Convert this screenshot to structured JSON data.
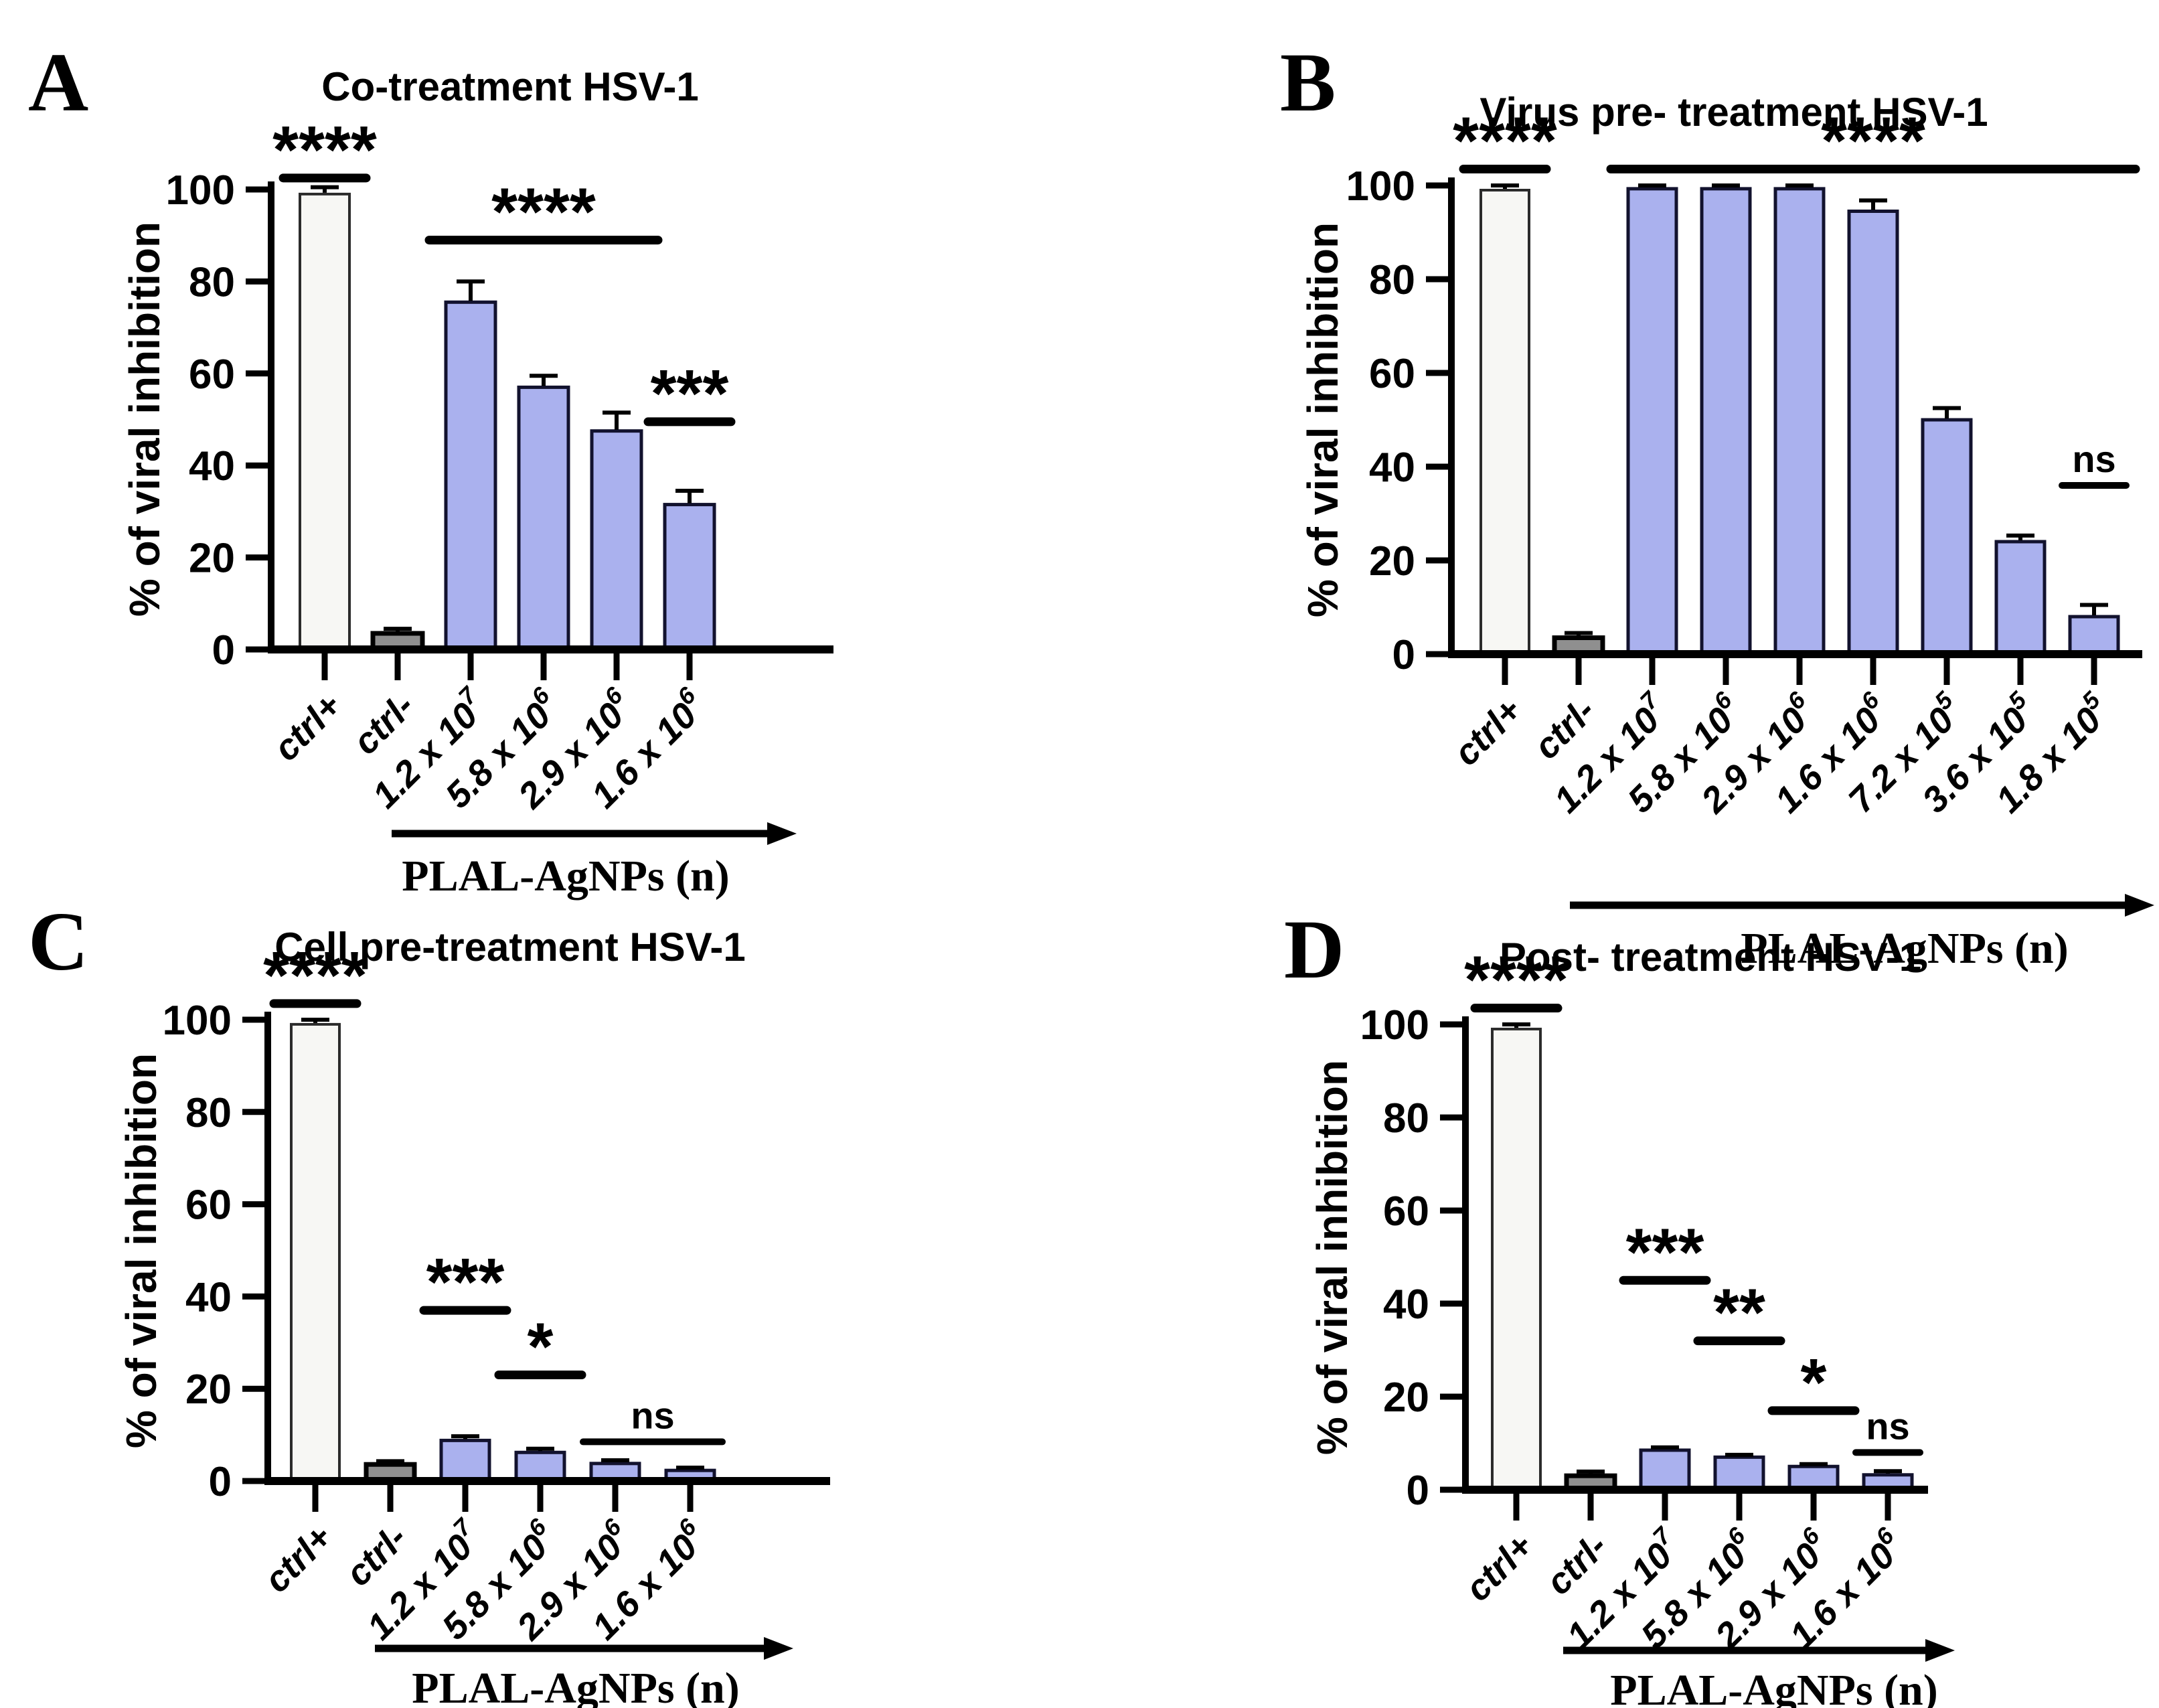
{
  "page": {
    "background": "#ffffff"
  },
  "colors": {
    "treatment_fill": "#aab1ee",
    "treatment_border": "#12122e",
    "control_positive_fill": "#f7f7f4",
    "control_positive_border": "#2b2b2b",
    "control_negative_fill": "#8f8f8f",
    "control_negative_border": "#000000",
    "axis": "#000000",
    "text": "#000000",
    "error_bar": "#000000",
    "significance": "#000000"
  },
  "chart_data": [
    {
      "type": "bar",
      "panel_letter": "A",
      "title": "Co-treatment HSV-1",
      "ylabel": "% of viral inhibition",
      "xlabel": "PLAL-AgNPs (n)",
      "ylim": [
        0,
        100
      ],
      "yticks": [
        0,
        20,
        40,
        60,
        80,
        100
      ],
      "grid": false,
      "legend": "none",
      "categories": [
        "ctrl+",
        "ctrl-",
        "1.2 x 10^7",
        "5.8 x 10^6",
        "2.9 x 10^6",
        "1.6 x 10^6"
      ],
      "values": [
        99,
        3.5,
        75.5,
        57,
        47.5,
        31.5
      ],
      "errors": [
        1.5,
        1,
        4.5,
        2.5,
        4,
        3
      ],
      "bar_roles": [
        "control_positive",
        "control_negative",
        "treatment",
        "treatment",
        "treatment",
        "treatment"
      ],
      "significance": [
        {
          "label": "****",
          "from": 0,
          "to": 0,
          "y": 102.5
        },
        {
          "label": "****",
          "from": 2,
          "to": 4,
          "y": 89
        },
        {
          "label": "***",
          "from": 5,
          "to": 5,
          "y": 49.5
        }
      ],
      "x_arrow": true
    },
    {
      "type": "bar",
      "panel_letter": "B",
      "title": "Virus pre- treatment HSV-1",
      "ylabel": "% of viral inhibition",
      "xlabel": "PLAL-AgNPs (n)",
      "ylim": [
        0,
        100
      ],
      "yticks": [
        0,
        20,
        40,
        60,
        80,
        100
      ],
      "grid": false,
      "legend": "none",
      "categories": [
        "ctrl+",
        "ctrl-",
        "1.2 x 10^7",
        "5.8 x 10^6",
        "2.9 x 10^6",
        "1.6 x 10^6",
        "7.2 x 10^5",
        "3.6 x 10^5",
        "1.8 x 10^5"
      ],
      "values": [
        99,
        3.5,
        99.3,
        99.3,
        99.3,
        94.5,
        50,
        24,
        8
      ],
      "errors": [
        1,
        1,
        0.7,
        0.7,
        0.7,
        2.3,
        2.5,
        1.3,
        2.5
      ],
      "bar_roles": [
        "control_positive",
        "control_negative",
        "treatment",
        "treatment",
        "treatment",
        "treatment",
        "treatment",
        "treatment",
        "treatment"
      ],
      "significance": [
        {
          "label": "****",
          "from": 0,
          "to": 0,
          "y": 103.5
        },
        {
          "label": "****",
          "from": 2,
          "to": 8,
          "y": 103.5
        },
        {
          "label": "ns",
          "from": 8,
          "to": 8,
          "y": 36
        }
      ],
      "x_arrow": true
    },
    {
      "type": "bar",
      "panel_letter": "C",
      "title": "Cell pre-treatment HSV-1",
      "ylabel": "% of viral inhibition",
      "xlabel": "PLAL-AgNPs (n)",
      "ylim": [
        0,
        100
      ],
      "yticks": [
        0,
        20,
        40,
        60,
        80,
        100
      ],
      "grid": false,
      "legend": "none",
      "categories": [
        "ctrl+",
        "ctrl-",
        "1.2 x 10^7",
        "5.8 x 10^6",
        "2.9 x 10^6",
        "1.6 x 10^6"
      ],
      "values": [
        99,
        3.6,
        8.8,
        6.2,
        3.8,
        2.3
      ],
      "errors": [
        1,
        0.7,
        0.9,
        0.8,
        0.7,
        0.6
      ],
      "bar_roles": [
        "control_positive",
        "control_negative",
        "treatment",
        "treatment",
        "treatment",
        "treatment"
      ],
      "significance": [
        {
          "label": "****",
          "from": 0,
          "to": 0,
          "y": 103.5
        },
        {
          "label": "***",
          "from": 2,
          "to": 2,
          "y": 37
        },
        {
          "label": "*",
          "from": 3,
          "to": 3,
          "y": 23
        },
        {
          "label": "ns",
          "from": 4,
          "to": 5,
          "y": 8.5
        }
      ],
      "x_arrow": true
    },
    {
      "type": "bar",
      "panel_letter": "D",
      "title": "Post- treatment HSV-1",
      "ylabel": "% of viral inhibition",
      "xlabel": "PLAL-AgNPs (n)",
      "ylim": [
        0,
        100
      ],
      "yticks": [
        0,
        20,
        40,
        60,
        80,
        100
      ],
      "grid": false,
      "legend": "none",
      "categories": [
        "ctrl+",
        "ctrl-",
        "1.2 x 10^7",
        "5.8 x 10^6",
        "2.9 x 10^6",
        "1.6 x 10^6"
      ],
      "values": [
        99,
        3,
        8.5,
        7,
        5,
        3.2
      ],
      "errors": [
        1,
        0.9,
        0.6,
        0.5,
        0.5,
        0.8
      ],
      "bar_roles": [
        "control_positive",
        "control_negative",
        "treatment",
        "treatment",
        "treatment",
        "treatment"
      ],
      "significance": [
        {
          "label": "****",
          "from": 0,
          "to": 0,
          "y": 103.5
        },
        {
          "label": "***",
          "from": 2,
          "to": 2,
          "y": 45
        },
        {
          "label": "**",
          "from": 3,
          "to": 3,
          "y": 32
        },
        {
          "label": "*",
          "from": 4,
          "to": 4,
          "y": 17
        },
        {
          "label": "ns",
          "from": 5,
          "to": 5,
          "y": 8
        }
      ],
      "x_arrow": true
    }
  ]
}
